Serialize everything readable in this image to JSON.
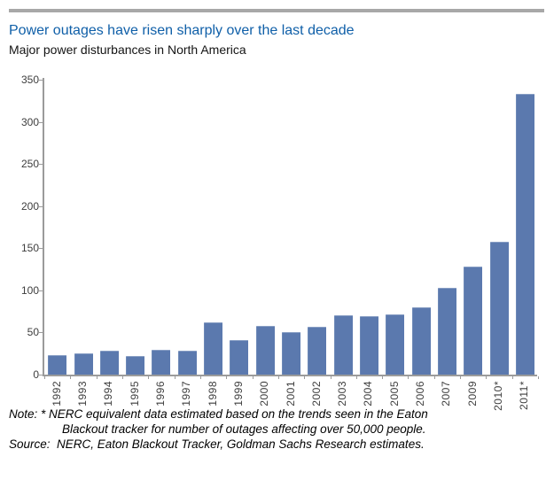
{
  "header": {
    "title": "Power outages have risen sharply over the last decade",
    "subtitle": "Major power disturbances in North America"
  },
  "chart_data": {
    "type": "bar",
    "title": "Power outages have risen sharply over the last decade",
    "subtitle": "Major power disturbances in North America",
    "categories": [
      "1992",
      "1993",
      "1994",
      "1995",
      "1996",
      "1997",
      "1998",
      "1999",
      "2000",
      "2001",
      "2002",
      "2003",
      "2004",
      "2005",
      "2006",
      "2007",
      "2009",
      "2010*",
      "2011*"
    ],
    "values": [
      23,
      25,
      28,
      22,
      29,
      28,
      62,
      41,
      58,
      50,
      57,
      70,
      69,
      72,
      80,
      103,
      128,
      158,
      333
    ],
    "xlabel": "",
    "ylabel": "",
    "ylim": [
      0,
      350
    ],
    "yticks": [
      0,
      50,
      100,
      150,
      200,
      250,
      300,
      350
    ],
    "grid": false,
    "legend": false
  },
  "footnote": {
    "lines": [
      {
        "text": "Note: * NERC equivalent data estimated based on the trends seen in the Eaton",
        "indent": 0
      },
      {
        "text": "Blackout tracker for number of outages affecting over 50,000 people.",
        "indent": 60
      },
      {
        "text": "Source:  NERC, Eaton Blackout Tracker, Goldman Sachs Research estimates.",
        "indent": 0
      }
    ]
  },
  "colors": {
    "title_blue": "#0F5FA8",
    "divider_gray": "#A8A8A8",
    "bar_blue": "#5B79AE",
    "axis_gray": "#9B9B9B",
    "tick_label": "#3D3D3D"
  }
}
